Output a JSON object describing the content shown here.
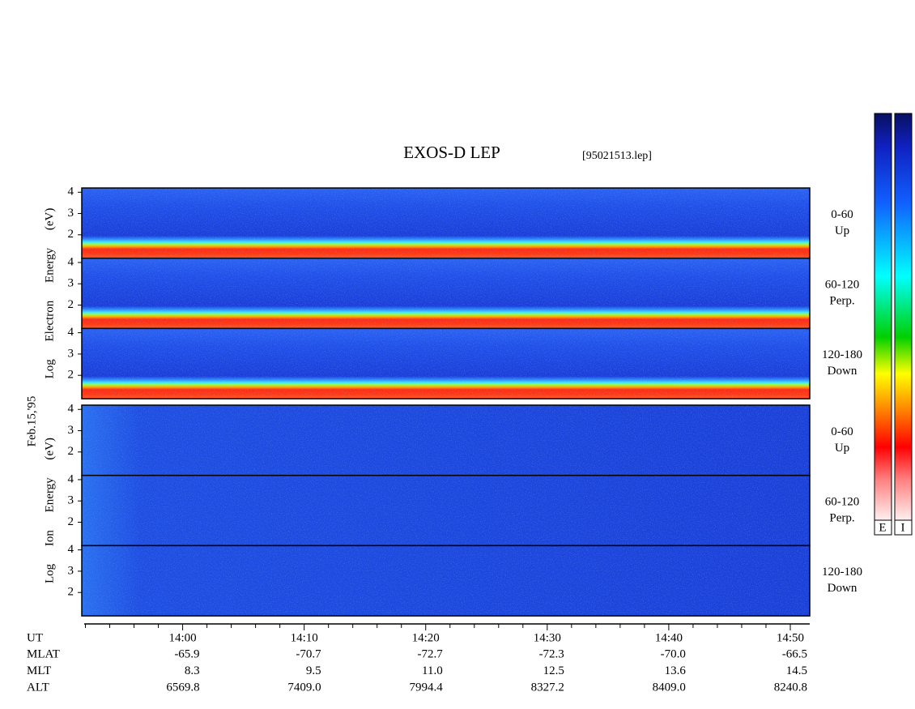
{
  "chart_data": {
    "type": "spectrogram",
    "title": "EXOS-D LEP",
    "subtitle": "[95021513.lep]",
    "date_label": "Feb.15,'95",
    "ylim": [
      0.9,
      4.2
    ],
    "yticks": [
      2,
      3,
      4
    ],
    "xlim": [
      51.7,
      111.6
    ],
    "xticks": [
      {
        "value": 60,
        "label": "14:00"
      },
      {
        "value": 70,
        "label": "14:10"
      },
      {
        "value": 80,
        "label": "14:20"
      },
      {
        "value": 90,
        "label": "14:30"
      },
      {
        "value": 100,
        "label": "14:40"
      },
      {
        "value": 110,
        "label": "14:50"
      }
    ],
    "xminorticks": [
      52,
      54,
      56,
      58,
      62,
      64,
      66,
      68,
      72,
      74,
      76,
      78,
      82,
      84,
      86,
      88,
      92,
      94,
      96,
      98,
      102,
      104,
      106,
      108
    ],
    "groups": [
      {
        "ylabel": "Log Electron Energy (eV)",
        "species": "E",
        "panels": [
          {
            "labels": [
              "0-60",
              "Up"
            ]
          },
          {
            "labels": [
              "60-120",
              "Perp."
            ]
          },
          {
            "labels": [
              "120-180",
              "Down"
            ]
          }
        ]
      },
      {
        "ylabel": "Log Ion Energy (eV)",
        "species": "I",
        "panels": [
          {
            "labels": [
              "0-60",
              "Up"
            ]
          },
          {
            "labels": [
              "60-120",
              "Perp."
            ]
          },
          {
            "labels": [
              "120-180",
              "Down"
            ]
          }
        ]
      }
    ],
    "x_axis_name": "UT",
    "ephemeris": [
      {
        "name": "MLAT",
        "values": [
          "-65.9",
          "-70.7",
          "-72.7",
          "-72.3",
          "-70.0",
          "-66.5"
        ]
      },
      {
        "name": "MLT",
        "values": [
          "8.3",
          "9.5",
          "11.0",
          "12.5",
          "13.6",
          "14.5"
        ]
      },
      {
        "name": "ALT",
        "values": [
          "6569.8",
          "7409.0",
          "7994.4",
          "8327.2",
          "8409.0",
          "8240.8"
        ]
      }
    ]
  }
}
